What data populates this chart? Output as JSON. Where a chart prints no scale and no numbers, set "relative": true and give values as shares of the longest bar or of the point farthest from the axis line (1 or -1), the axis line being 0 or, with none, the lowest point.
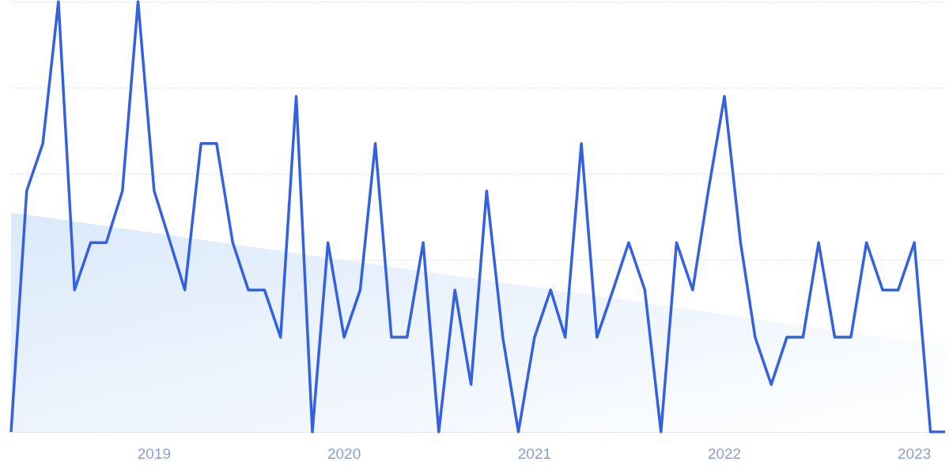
{
  "chart_data": {
    "type": "line",
    "relative": true,
    "grid": "y",
    "marker": "none",
    "line_style": "solid",
    "xlim": [
      "2018-04",
      "2023-03"
    ],
    "xticks": [
      "2019",
      "2020",
      "2021",
      "2022",
      "2023"
    ],
    "series": [
      {
        "type": "area",
        "color": "#dbe9fb",
        "x": [
          "2018-04",
          "2023-03"
        ],
        "values": [
          0.51,
          0.2
        ]
      },
      {
        "color": "#3461e0",
        "x": [
          "2018-04",
          "2018-05",
          "2018-06",
          "2018-07",
          "2018-08",
          "2018-09",
          "2018-10",
          "2018-11",
          "2018-12",
          "2019-01",
          "2019-02",
          "2019-03",
          "2019-04",
          "2019-05",
          "2019-06",
          "2019-07",
          "2019-08",
          "2019-09",
          "2019-10",
          "2019-11",
          "2019-12",
          "2020-01",
          "2020-02",
          "2020-03",
          "2020-04",
          "2020-05",
          "2020-06",
          "2020-07",
          "2020-08",
          "2020-09",
          "2020-10",
          "2020-11",
          "2020-12",
          "2021-01",
          "2021-02",
          "2021-03",
          "2021-04",
          "2021-05",
          "2021-06",
          "2021-07",
          "2021-08",
          "2021-09",
          "2021-10",
          "2021-11",
          "2021-12",
          "2022-01",
          "2022-02",
          "2022-03",
          "2022-04",
          "2022-05",
          "2022-06",
          "2022-07",
          "2022-08",
          "2022-09",
          "2022-10",
          "2022-11",
          "2022-12",
          "2023-01",
          "2023-02",
          "2023-03"
        ],
        "values": [
          0,
          0.56,
          0.67,
          1,
          0.33,
          0.44,
          0.44,
          0.56,
          1,
          0.56,
          0.44,
          0.33,
          0.67,
          0.67,
          0.44,
          0.33,
          0.33,
          0.22,
          0.78,
          0,
          0.44,
          0.22,
          0.33,
          0.67,
          0.22,
          0.22,
          0.44,
          0,
          0.33,
          0.11,
          0.56,
          0.22,
          0,
          0.22,
          0.33,
          0.22,
          0.67,
          0.22,
          0.33,
          0.44,
          0.33,
          0,
          0.44,
          0.33,
          0.56,
          0.78,
          0.44,
          0.22,
          0.11,
          0.22,
          0.22,
          0.44,
          0.22,
          0.22,
          0.44,
          0.33,
          0.33,
          0.44,
          0,
          0
        ]
      }
    ]
  }
}
